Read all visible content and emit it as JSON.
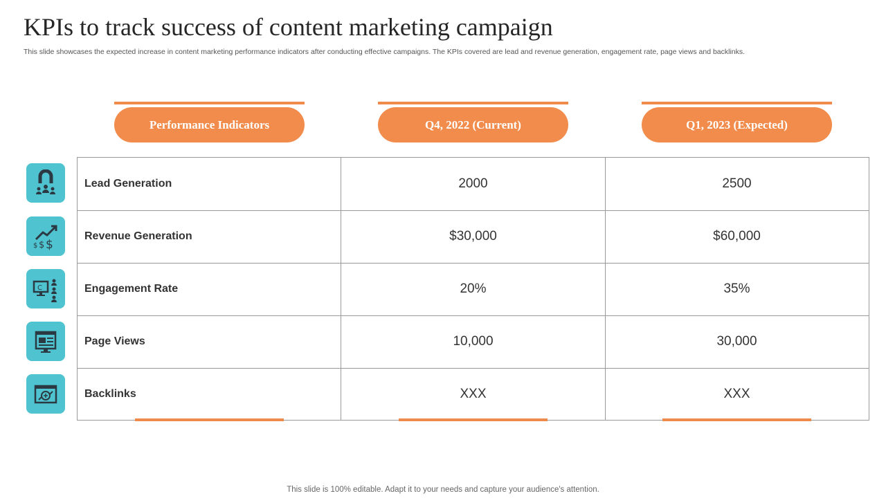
{
  "slide": {
    "title": "KPIs to track success of content marketing campaign",
    "subtitle": "This slide showcases the expected increase in content marketing performance indicators after conducting effective campaigns. The KPIs covered are lead and revenue generation, engagement rate, page views and backlinks.",
    "footer": "This slide is 100% editable. Adapt it to your needs and capture your audience's attention."
  },
  "colors": {
    "accent": "#f28c4c",
    "icon_bg": "#4fc3cf",
    "border": "#999999"
  },
  "table": {
    "headers": [
      "Performance Indicators",
      "Q4, 2022 (Current)",
      "Q1, 2023 (Expected)"
    ],
    "rows": [
      {
        "icon": "magnet-people-icon",
        "label": "Lead Generation",
        "current": "2000",
        "expected": "2500"
      },
      {
        "icon": "money-growth-icon",
        "label": "Revenue Generation",
        "current": "$30,000",
        "expected": "$60,000"
      },
      {
        "icon": "monitor-audience-icon",
        "label": "Engagement Rate",
        "current": "20%",
        "expected": "35%"
      },
      {
        "icon": "webpage-views-icon",
        "label": "Page Views",
        "current": "10,000",
        "expected": "30,000"
      },
      {
        "icon": "browser-link-icon",
        "label": "Backlinks",
        "current": "XXX",
        "expected": "XXX"
      }
    ]
  }
}
